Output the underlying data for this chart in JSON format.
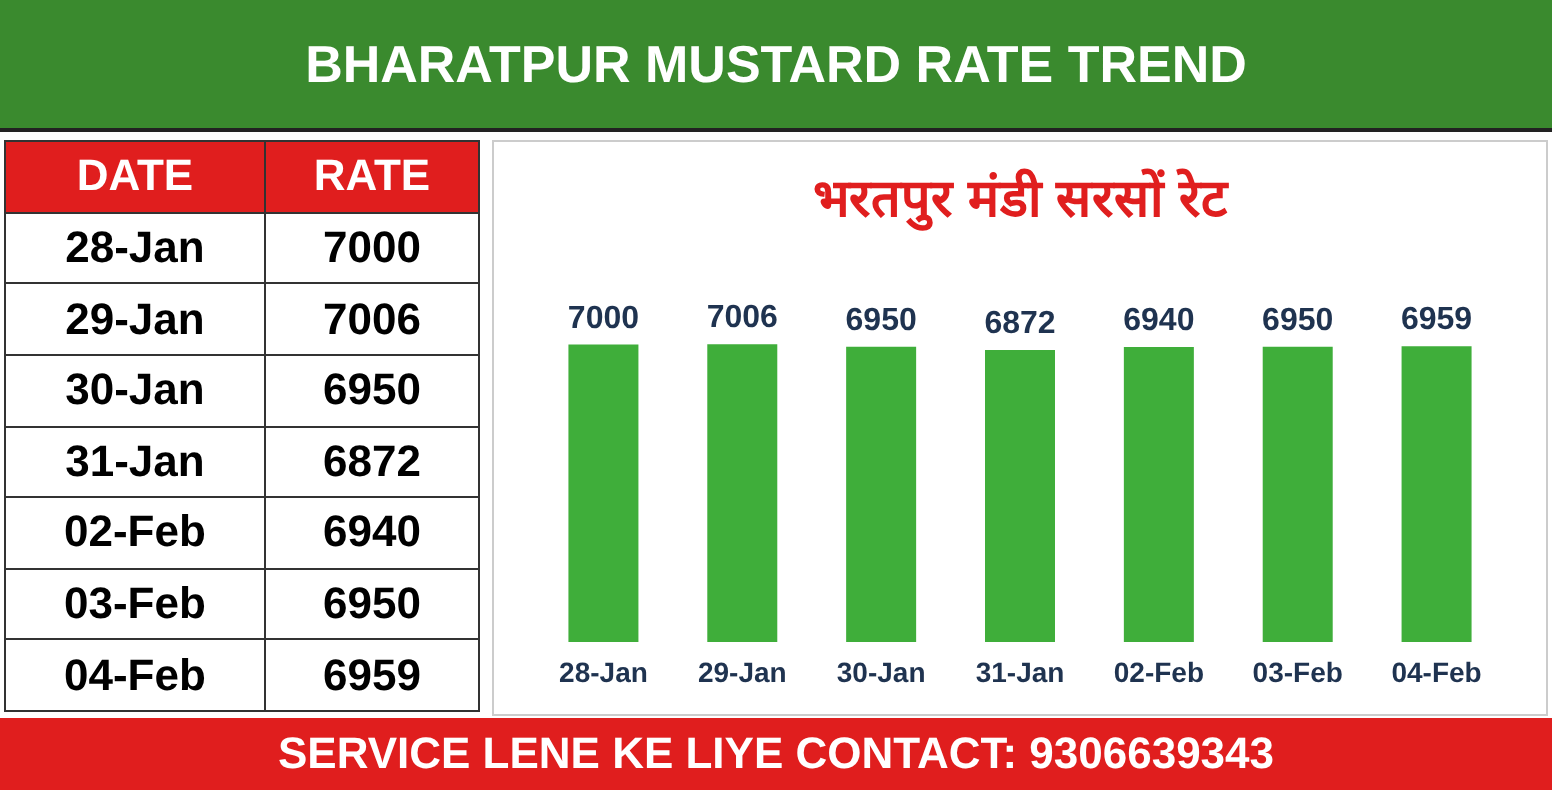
{
  "chart_data": [
    {
      "type": "other",
      "annotations": [
        "DATE",
        "RATE",
        "28-Jan",
        "7000",
        "29-Jan",
        "7006",
        "30-Jan",
        "6950",
        "31-Jan",
        "6872",
        "02-Feb",
        "6940",
        "03-Feb",
        "6950",
        "04-Feb",
        "6959"
      ]
    },
    {
      "type": "bar",
      "title": "BHARATPUR MUSTARD RATE TREND",
      "subtitle": "भरतपुर मंडी सरसों रेट",
      "categories": [
        "28-Jan",
        "29-Jan",
        "30-Jan",
        "31-Jan",
        "02-Feb",
        "03-Feb",
        "04-Feb"
      ],
      "values": [
        7000,
        7006,
        6950,
        6872,
        6940,
        6950,
        6959
      ],
      "color": "#3fae3a",
      "data_labels": true,
      "annotations": [
        "SERVICE LENE KE LIYE CONTACT: 9306639343"
      ]
    }
  ]
}
